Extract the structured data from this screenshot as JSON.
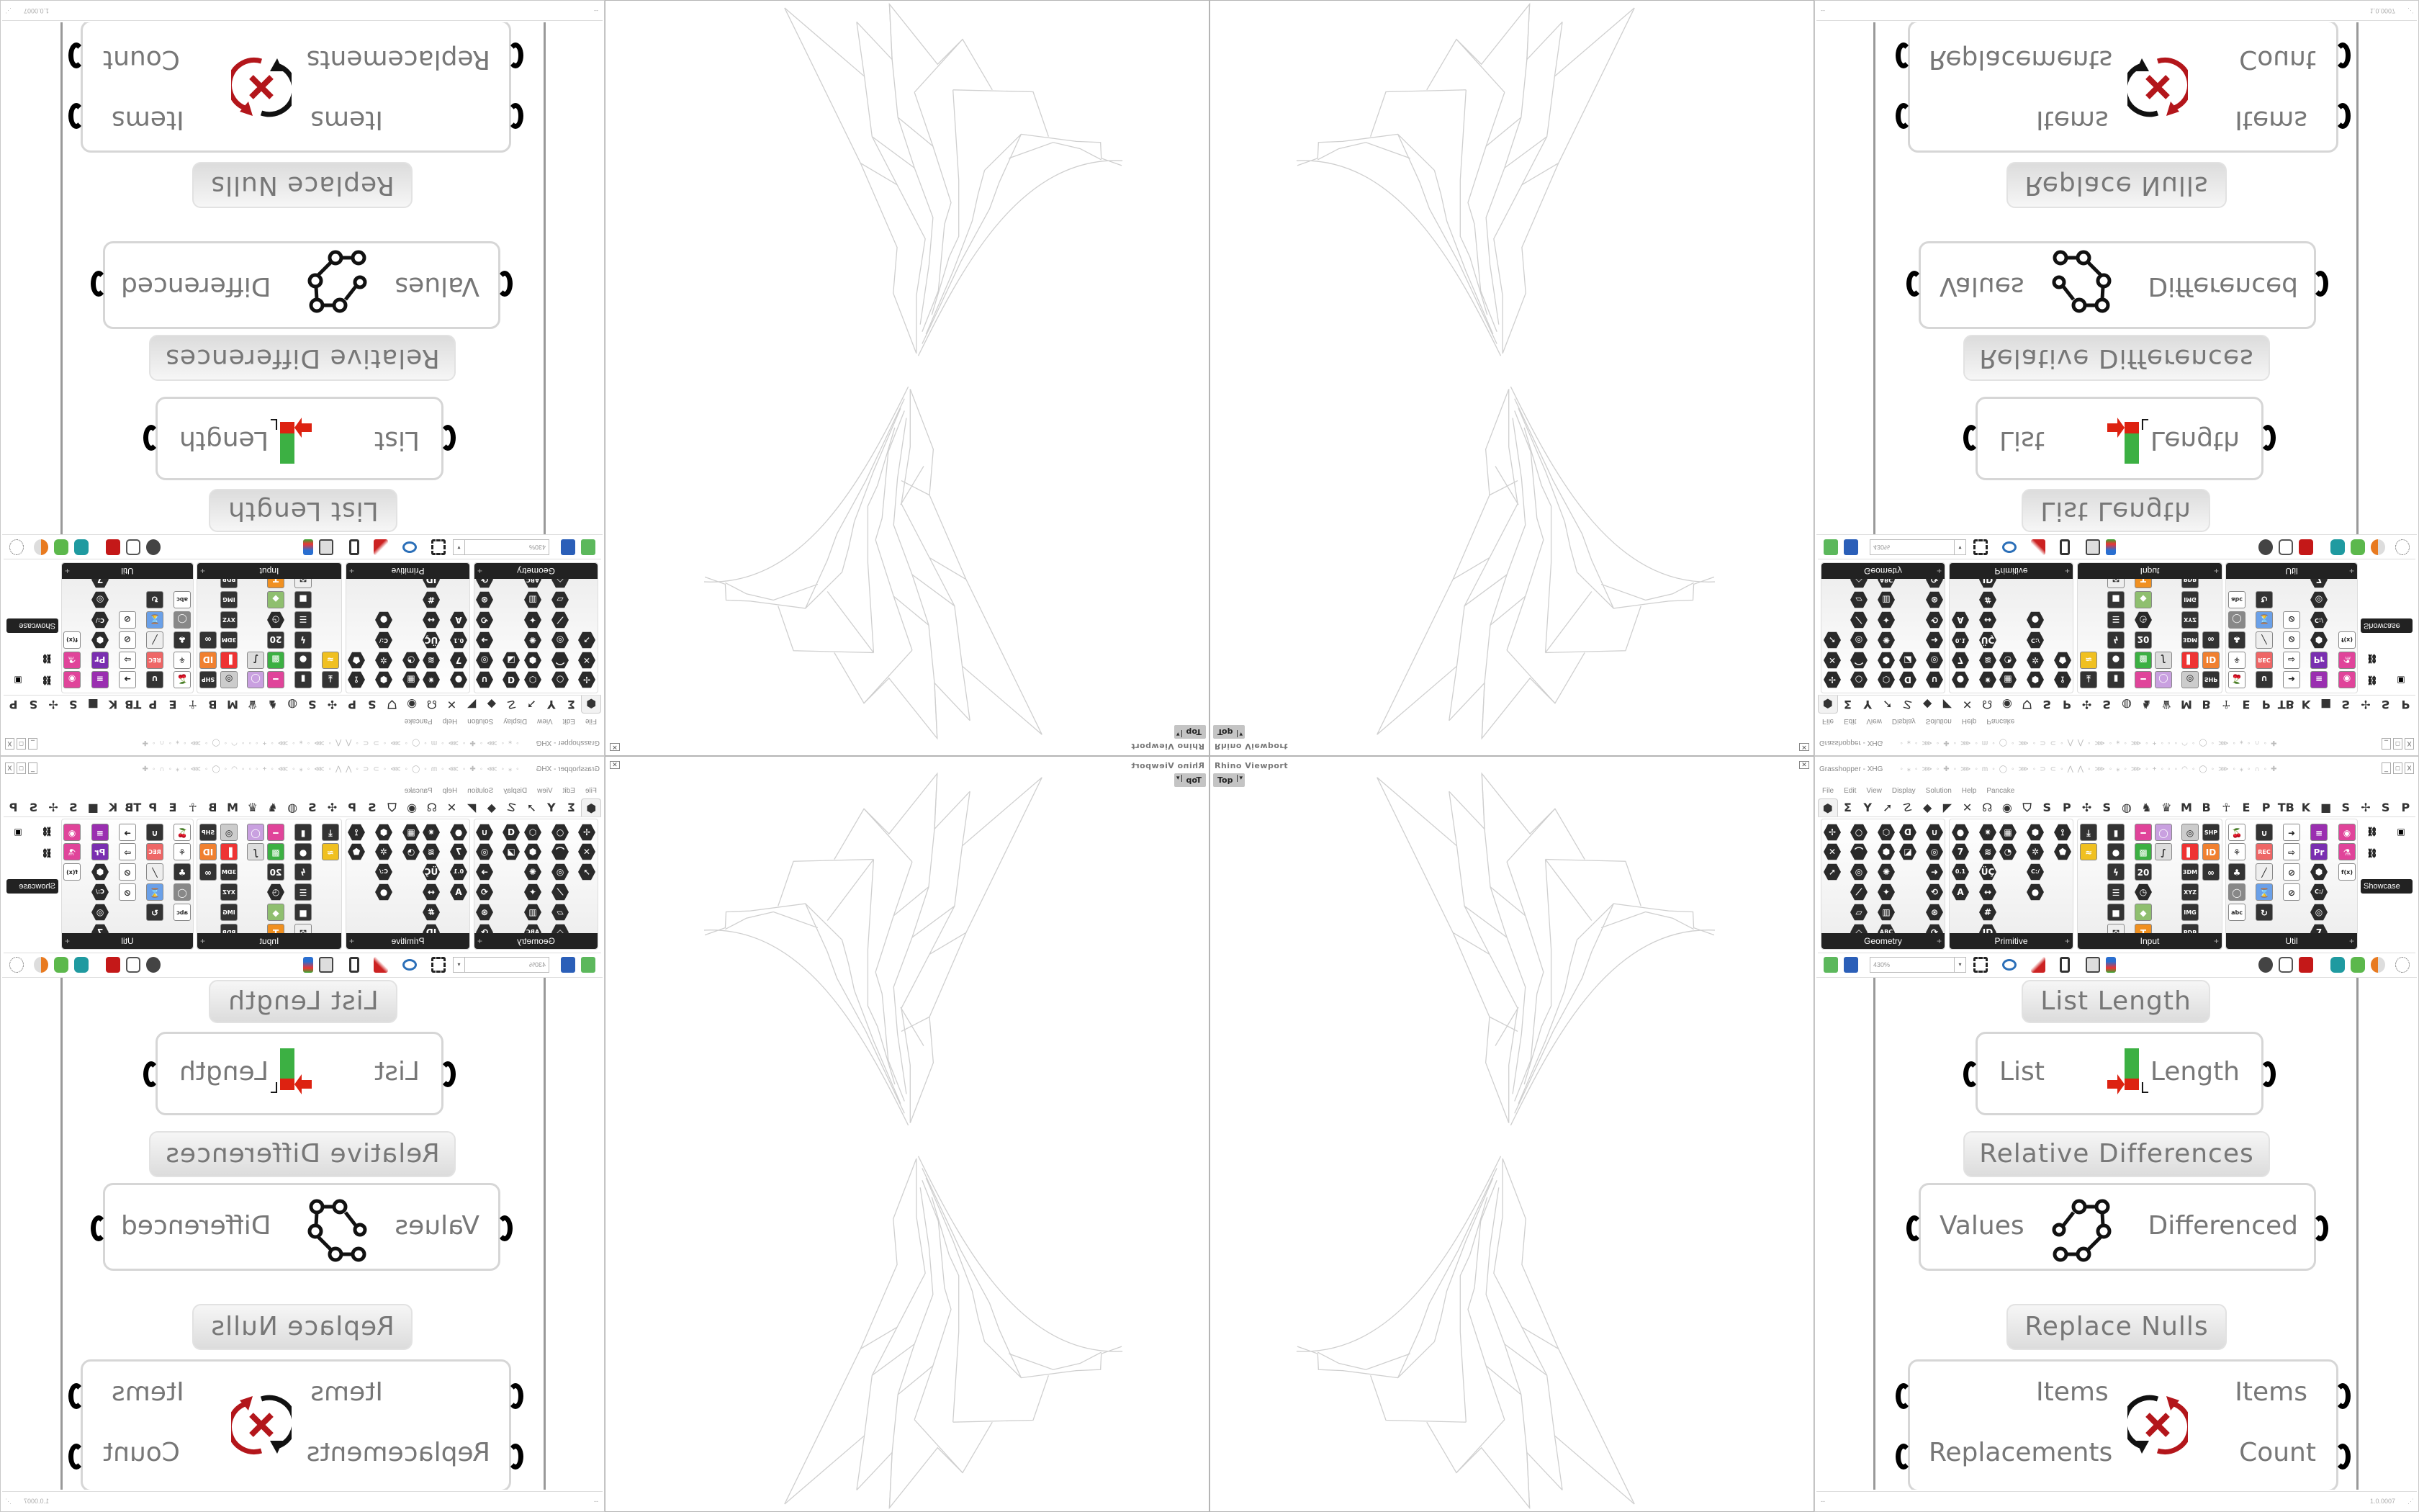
{
  "viewport": {
    "title": "Rhino Viewport",
    "view": "Top",
    "view_dropdown": "▾",
    "close": "✕"
  },
  "grasshopper": {
    "window_title": "Grasshopper - XHG",
    "window_buttons": [
      "_",
      "□",
      "X"
    ],
    "menu": [
      "File",
      "Edit",
      "View",
      "Display",
      "Solution",
      "Help",
      "Pancake"
    ],
    "tabs": [
      "⬢",
      "Σ",
      "Y",
      "➚",
      "☡",
      "◆",
      "◤",
      "✕",
      "☊",
      "◉",
      "⛉",
      "S",
      "P",
      "✣",
      "S",
      "◍",
      "♞",
      "♛",
      "M",
      "B",
      "☥",
      "E",
      "P",
      "TB",
      "K",
      "■",
      "S",
      "✢",
      "S",
      "P"
    ],
    "ribbon": [
      {
        "label": "Geometry",
        "icons": [
          {
            "g": "✢",
            "c": 0,
            "r": 0
          },
          {
            "g": "✕",
            "c": 0,
            "r": 1
          },
          {
            "g": "➚",
            "c": 0,
            "r": 2
          },
          {
            "g": "○",
            "c": 1,
            "r": 0
          },
          {
            "g": "⌒",
            "c": 1,
            "r": 1
          },
          {
            "g": "◎",
            "c": 1,
            "r": 2
          },
          {
            "g": "⟋",
            "c": 1,
            "r": 3
          },
          {
            "g": "▱",
            "c": 1,
            "r": 4
          },
          {
            "g": "◇",
            "c": 1,
            "r": 5
          },
          {
            "g": "⬡",
            "c": 2,
            "r": 0
          },
          {
            "g": "⬢",
            "c": 2,
            "r": 1
          },
          {
            "g": "✺",
            "c": 2,
            "r": 2
          },
          {
            "g": "✦",
            "c": 2,
            "r": 3
          },
          {
            "g": "▥",
            "c": 2,
            "r": 4
          },
          {
            "g": "ABC",
            "c": 2,
            "r": 5
          },
          {
            "g": "ᗡ",
            "c": 3,
            "r": 0
          },
          {
            "g": "◪",
            "c": 3,
            "r": 1
          },
          {
            "g": "∪",
            "c": 4,
            "r": 0
          },
          {
            "g": "◎",
            "c": 4,
            "r": 1
          },
          {
            "g": "➜",
            "c": 4,
            "r": 2
          },
          {
            "g": "⟲",
            "c": 4,
            "r": 3
          },
          {
            "g": "⊛",
            "c": 4,
            "r": 4
          },
          {
            "g": "⟳",
            "c": 4,
            "r": 5
          }
        ]
      },
      {
        "label": "Primitive",
        "icons": [
          {
            "g": "●",
            "c": 0,
            "r": 0
          },
          {
            "g": "7",
            "c": 0,
            "r": 1
          },
          {
            "g": "0.1",
            "c": 0,
            "r": 2
          },
          {
            "g": "A",
            "c": 0,
            "r": 3
          },
          {
            "g": "✷",
            "c": 1,
            "r": 0
          },
          {
            "g": "≋",
            "c": 1,
            "r": 1
          },
          {
            "g": "ÜÇ",
            "c": 1,
            "r": 2
          },
          {
            "g": "↔",
            "c": 1,
            "r": 3
          },
          {
            "g": "#",
            "c": 1,
            "r": 4
          },
          {
            "g": "ID",
            "c": 1,
            "r": 5
          },
          {
            "g": "▦",
            "c": 2,
            "r": 0
          },
          {
            "g": "◔",
            "c": 2,
            "r": 1
          },
          {
            "g": "⬢",
            "c": 3,
            "r": 0
          },
          {
            "g": "✲",
            "c": 3,
            "r": 1
          },
          {
            "g": "C:/",
            "c": 3,
            "r": 2
          },
          {
            "g": "●",
            "c": 3,
            "r": 3
          },
          {
            "g": "⟟",
            "c": 4,
            "r": 0
          },
          {
            "g": "⬟",
            "c": 4,
            "r": 1
          }
        ]
      },
      {
        "label": "Input",
        "icons": [
          {
            "g": "⤓",
            "c": 0,
            "r": 0,
            "sq": true
          },
          {
            "g": "≈",
            "c": 0,
            "r": 1,
            "sq": true,
            "col": "#f0c020"
          },
          {
            "g": "▮",
            "c": 1,
            "r": 0,
            "sq": true
          },
          {
            "g": "●",
            "c": 1,
            "r": 1,
            "sq": true
          },
          {
            "g": "ϟ",
            "c": 1,
            "r": 2,
            "sq": true
          },
          {
            "g": "☰",
            "c": 1,
            "r": 3,
            "sq": true
          },
          {
            "g": "■",
            "c": 1,
            "r": 4,
            "sq": true
          },
          {
            "g": "⤧",
            "c": 1,
            "r": 5,
            "sq": true,
            "col": "#eee"
          },
          {
            "g": "━",
            "c": 2,
            "r": 0,
            "sq": true,
            "col": "#e0449a"
          },
          {
            "g": "▩",
            "c": 2,
            "r": 1,
            "sq": true,
            "col": "#3cb043"
          },
          {
            "g": "20",
            "c": 2,
            "r": 2,
            "sq": true
          },
          {
            "g": "◷",
            "c": 2,
            "r": 3
          },
          {
            "g": "◆",
            "c": 2,
            "r": 4,
            "sq": true,
            "col": "#8fbf6f"
          },
          {
            "g": "T",
            "c": 2,
            "r": 5,
            "sq": true,
            "col": "#f09020"
          },
          {
            "g": "◯",
            "c": 3,
            "r": 0,
            "sq": true,
            "col": "#c9a0e0"
          },
          {
            "g": "∫",
            "c": 3,
            "r": 1,
            "sq": true,
            "col": "#ddd"
          },
          {
            "g": "◎",
            "c": 4,
            "r": 0,
            "sq": true,
            "col": "#ccc"
          },
          {
            "g": "▌",
            "c": 4,
            "r": 1,
            "sq": true,
            "col": "#e33"
          },
          {
            "g": "3DM",
            "c": 4,
            "r": 2,
            "sq": true
          },
          {
            "g": "XYZ",
            "c": 4,
            "r": 3,
            "sq": true
          },
          {
            "g": "IMG",
            "c": 4,
            "r": 4,
            "sq": true
          },
          {
            "g": "PDB",
            "c": 4,
            "r": 5,
            "sq": true
          },
          {
            "g": "SHP",
            "c": 5,
            "r": 0,
            "sq": true
          },
          {
            "g": "ID",
            "c": 5,
            "r": 1,
            "sq": true,
            "col": "#f08030"
          },
          {
            "g": "∞",
            "c": 5,
            "r": 2,
            "sq": true
          }
        ]
      },
      {
        "label": "Util",
        "icons": [
          {
            "g": "🍒",
            "c": 0,
            "r": 0,
            "sq": true,
            "col": "#fff"
          },
          {
            "g": "⚘",
            "c": 0,
            "r": 1,
            "sq": true,
            "col": "#fff"
          },
          {
            "g": "♣",
            "c": 0,
            "r": 2,
            "sq": true
          },
          {
            "g": "◯",
            "c": 0,
            "r": 3,
            "sq": true,
            "col": "#888"
          },
          {
            "g": "abc",
            "c": 0,
            "r": 4,
            "sq": true,
            "col": "#fff"
          },
          {
            "g": "∪",
            "c": 1,
            "r": 0,
            "sq": true
          },
          {
            "g": "REC",
            "c": 1,
            "r": 1,
            "sq": true,
            "col": "#e66"
          },
          {
            "g": "╱",
            "c": 1,
            "r": 2,
            "sq": true,
            "col": "#eee"
          },
          {
            "g": "⌛",
            "c": 1,
            "r": 3,
            "sq": true,
            "col": "#6aa0e8"
          },
          {
            "g": "↻",
            "c": 1,
            "r": 4,
            "sq": true
          },
          {
            "g": "➜",
            "c": 2,
            "r": 0,
            "sq": true,
            "col": "#fff"
          },
          {
            "g": "⇨",
            "c": 2,
            "r": 1,
            "sq": true,
            "col": "#fff"
          },
          {
            "g": "⊘",
            "c": 2,
            "r": 2,
            "sq": true,
            "col": "#fff"
          },
          {
            "g": "⊘",
            "c": 2,
            "r": 3,
            "sq": true,
            "col": "#fff"
          },
          {
            "g": "≡",
            "c": 3,
            "r": 0,
            "sq": true,
            "col": "#9a2fb0"
          },
          {
            "g": "Pr",
            "c": 3,
            "r": 1,
            "sq": true,
            "col": "#7a2fb0"
          },
          {
            "g": "⬢",
            "c": 3,
            "r": 2
          },
          {
            "g": "C:/",
            "c": 3,
            "r": 3
          },
          {
            "g": "◎",
            "c": 3,
            "r": 4
          },
          {
            "g": "7",
            "c": 3,
            "r": 5
          },
          {
            "g": "◉",
            "c": 4,
            "r": 0,
            "sq": true,
            "col": "#e0449a"
          },
          {
            "g": "⚗",
            "c": 4,
            "r": 1,
            "sq": true,
            "col": "#e0449a"
          },
          {
            "g": "f(x)",
            "c": 4,
            "r": 2,
            "sq": true,
            "col": "#fff"
          }
        ]
      }
    ],
    "showcase_label": "Showcase T...",
    "toolbar": {
      "zoom": "430%",
      "zoom_dropdown": "▾"
    },
    "components": {
      "list_length_label": "List Length",
      "list_length_in": "List",
      "list_length_out": "Length",
      "rel_diff_label": "Relative Differences",
      "rel_diff_in": "Values",
      "rel_diff_out": "Differenced",
      "replace_nulls_label": "Replace Nulls",
      "replace_in_1": "Items",
      "replace_in_2": "Replacements",
      "replace_out_1": "Items",
      "replace_out_2": "Count"
    },
    "status": {
      "left": "--",
      "version": "1.0.0007",
      "grip": "⋰"
    }
  },
  "colors": {
    "icon_dark": "#2a2a2a",
    "wire_grey": "#999999",
    "port_black": "#000000",
    "replace_red": "#b3161b",
    "list_green": "#3cb043"
  }
}
